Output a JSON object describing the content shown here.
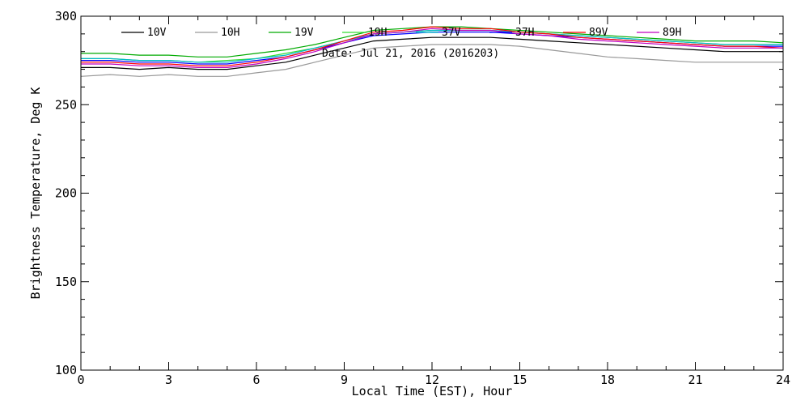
{
  "chart_data": {
    "type": "line",
    "title": "",
    "xlabel": "Local Time (EST), Hour",
    "ylabel": "Brightness Temperature, Deg K",
    "xlim": [
      0,
      24
    ],
    "ylim": [
      100,
      300
    ],
    "x_ticks": [
      0,
      3,
      6,
      9,
      12,
      15,
      18,
      21,
      24
    ],
    "y_ticks": [
      100,
      150,
      200,
      250,
      300
    ],
    "grid": false,
    "legend_placement": "top",
    "annotation": "Date: Jul 21, 2016 (2016203)",
    "x": [
      0,
      1,
      2,
      3,
      4,
      5,
      6,
      7,
      8,
      9,
      10,
      11,
      12,
      13,
      14,
      15,
      16,
      17,
      18,
      19,
      20,
      21,
      22,
      23,
      24
    ],
    "series": [
      {
        "name": "10V",
        "color": "#000000",
        "values": [
          271,
          271,
          270,
          271,
          270,
          270,
          272,
          274,
          278,
          282,
          286,
          287,
          288,
          288,
          288,
          287,
          286,
          285,
          284,
          283,
          282,
          281,
          280,
          280,
          280
        ]
      },
      {
        "name": "10H",
        "color": "#999999",
        "values": [
          266,
          267,
          266,
          267,
          266,
          266,
          268,
          270,
          274,
          278,
          282,
          283,
          284,
          284,
          284,
          283,
          281,
          279,
          277,
          276,
          275,
          274,
          274,
          274,
          274
        ]
      },
      {
        "name": "19V",
        "color": "#00aa00",
        "values": [
          279,
          279,
          278,
          278,
          277,
          277,
          279,
          281,
          284,
          288,
          292,
          293,
          294,
          294,
          293,
          292,
          291,
          290,
          289,
          288,
          287,
          286,
          286,
          286,
          285
        ]
      },
      {
        "name": "19H",
        "color": "#33dd33",
        "values": [
          276,
          276,
          275,
          275,
          274,
          275,
          276,
          279,
          282,
          286,
          290,
          291,
          292,
          292,
          292,
          291,
          290,
          289,
          288,
          287,
          286,
          285,
          284,
          284,
          284
        ]
      },
      {
        "name": "37V",
        "color": "#00b7c8",
        "values": [
          276,
          276,
          275,
          275,
          274,
          274,
          276,
          278,
          282,
          286,
          290,
          291,
          292,
          292,
          292,
          291,
          290,
          289,
          288,
          287,
          286,
          285,
          284,
          284,
          284
        ]
      },
      {
        "name": "37H",
        "color": "#0000ff",
        "values": [
          275,
          275,
          274,
          274,
          273,
          273,
          275,
          277,
          281,
          285,
          289,
          290,
          291,
          291,
          291,
          290,
          289,
          288,
          287,
          286,
          285,
          284,
          283,
          283,
          283
        ]
      },
      {
        "name": "89V",
        "color": "#ff0000",
        "values": [
          274,
          274,
          273,
          273,
          272,
          272,
          274,
          277,
          281,
          286,
          291,
          292,
          294,
          293,
          293,
          291,
          290,
          288,
          287,
          286,
          285,
          284,
          283,
          283,
          282
        ]
      },
      {
        "name": "89H",
        "color": "#c000c0",
        "values": [
          273,
          273,
          272,
          272,
          271,
          271,
          273,
          276,
          280,
          285,
          290,
          291,
          293,
          292,
          292,
          290,
          289,
          287,
          286,
          285,
          284,
          283,
          282,
          282,
          282
        ]
      }
    ]
  }
}
